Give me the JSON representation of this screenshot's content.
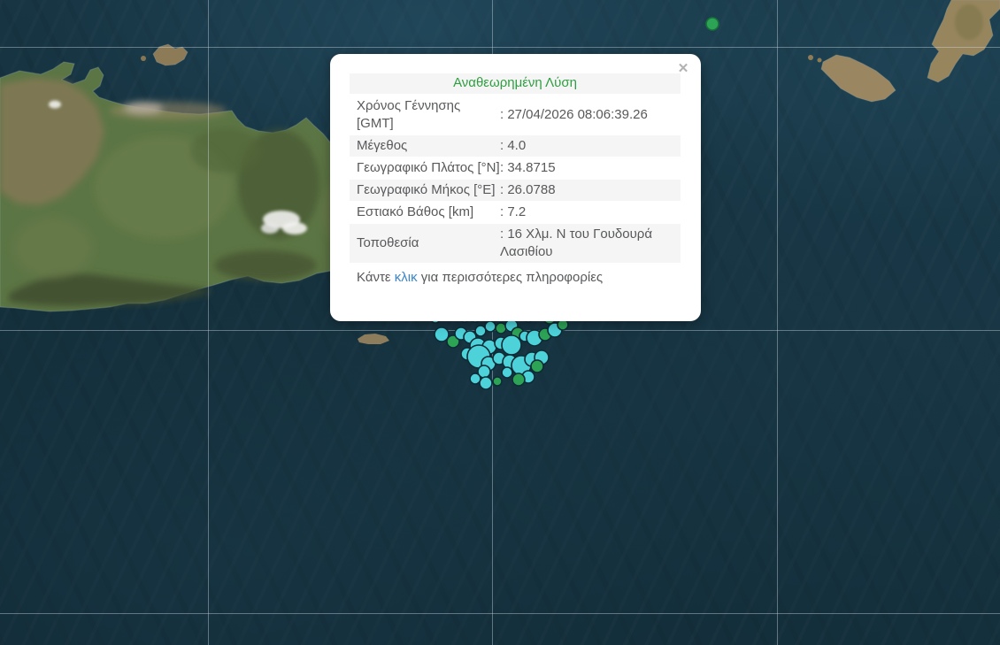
{
  "popup": {
    "title": "Αναθεωρημένη Λύση",
    "close_icon": "✕",
    "rows": [
      {
        "label": "Χρόνος Γέννησης [GMT]",
        "value": ": 27/04/2026 08:06:39.26",
        "shaded": false
      },
      {
        "label": "Μέγεθος",
        "value": ": 4.0",
        "shaded": true
      },
      {
        "label": "Γεωγραφικό Πλάτος [°N]",
        "value": ": 34.8715",
        "shaded": false
      },
      {
        "label": "Γεωγραφικό Μήκος [°Ε]",
        "value": ": 26.0788",
        "shaded": true
      },
      {
        "label": "Εστιακό Βάθος [km]",
        "value": ": 7.2",
        "shaded": false
      },
      {
        "label": "Τοποθεσία",
        "value": ": 16 Χλμ. Ν του Γουδουρά Λασιθίου",
        "shaded": true
      }
    ],
    "footer": {
      "prefix": "Κάντε ",
      "link": "κλικ",
      "suffix": " για περισσότερες πληροφορίες"
    },
    "colors": {
      "title_green": "#2f9e41",
      "link_blue": "#3d85c6",
      "text_gray": "#58595b"
    }
  },
  "map": {
    "grid": {
      "vertical_x": [
        235,
        556,
        878
      ],
      "horizontal_y": [
        53,
        373,
        693
      ]
    },
    "markers": {
      "colors": {
        "cyan": "#4dd2da",
        "green": "#2da355",
        "stroke": "#0e2b36",
        "single_stroke": "#17703a"
      },
      "single": [
        805,
        27,
        7,
        "green"
      ],
      "cluster": [
        [
          492,
          359,
          6,
          "cyan"
        ],
        [
          503,
          357,
          5,
          "cyan"
        ],
        [
          514,
          356,
          5,
          "green"
        ],
        [
          525,
          358,
          6,
          "cyan"
        ],
        [
          537,
          357,
          7,
          "cyan"
        ],
        [
          549,
          358,
          5,
          "green"
        ],
        [
          561,
          357,
          6,
          "cyan"
        ],
        [
          573,
          356,
          5,
          "cyan"
        ],
        [
          597,
          358,
          6,
          "green"
        ],
        [
          609,
          356,
          5,
          "cyan"
        ],
        [
          621,
          359,
          7,
          "green"
        ],
        [
          632,
          357,
          5,
          "cyan"
        ],
        [
          499,
          378,
          8,
          "cyan"
        ],
        [
          512,
          386,
          7,
          "green"
        ],
        [
          521,
          377,
          7,
          "cyan"
        ],
        [
          531,
          381,
          7,
          "cyan"
        ],
        [
          543,
          374,
          6,
          "cyan"
        ],
        [
          554,
          369,
          6,
          "cyan"
        ],
        [
          566,
          371,
          6,
          "green"
        ],
        [
          578,
          368,
          7,
          "cyan"
        ],
        [
          585,
          377,
          7,
          "green"
        ],
        [
          593,
          380,
          6,
          "cyan"
        ],
        [
          604,
          382,
          9,
          "cyan"
        ],
        [
          616,
          378,
          7,
          "green"
        ],
        [
          627,
          373,
          8,
          "cyan"
        ],
        [
          636,
          367,
          6,
          "green"
        ],
        [
          540,
          391,
          9,
          "cyan"
        ],
        [
          553,
          392,
          8,
          "cyan"
        ],
        [
          566,
          388,
          7,
          "cyan"
        ],
        [
          578,
          390,
          11,
          "cyan"
        ],
        [
          528,
          400,
          7,
          "cyan"
        ],
        [
          541,
          403,
          13,
          "cyan"
        ],
        [
          552,
          411,
          8,
          "cyan"
        ],
        [
          564,
          405,
          7,
          "cyan"
        ],
        [
          576,
          409,
          8,
          "cyan"
        ],
        [
          589,
          413,
          11,
          "cyan"
        ],
        [
          601,
          406,
          8,
          "cyan"
        ],
        [
          612,
          404,
          8,
          "cyan"
        ],
        [
          607,
          414,
          7,
          "green"
        ],
        [
          597,
          426,
          7,
          "cyan"
        ],
        [
          586,
          429,
          7,
          "green"
        ],
        [
          573,
          421,
          6,
          "cyan"
        ],
        [
          547,
          420,
          7,
          "cyan"
        ],
        [
          549,
          433,
          7,
          "cyan"
        ],
        [
          537,
          428,
          6,
          "cyan"
        ],
        [
          562,
          431,
          5,
          "green"
        ]
      ]
    }
  }
}
